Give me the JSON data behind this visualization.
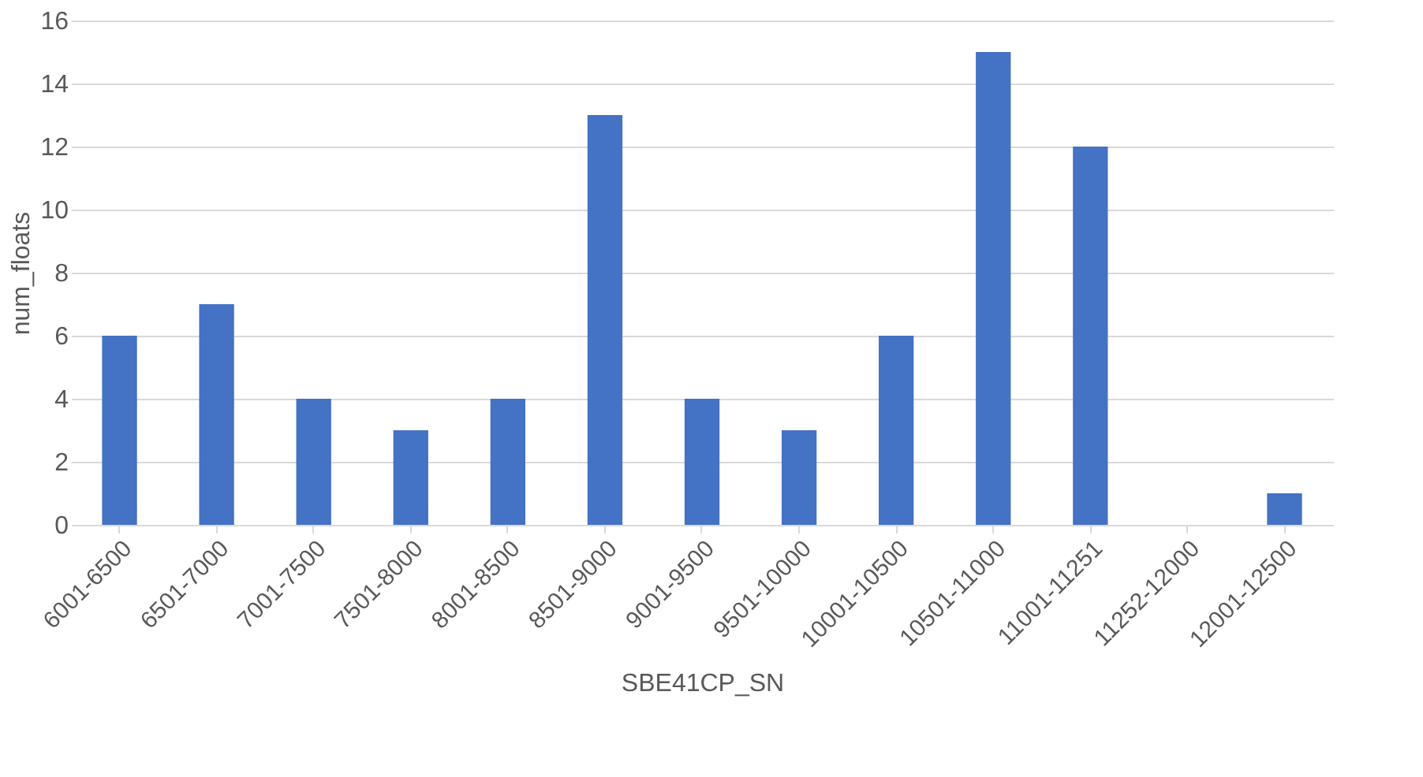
{
  "chart_data": {
    "type": "bar",
    "xlabel": "SBE41CP_SN",
    "ylabel": "num_floats",
    "categories": [
      "6001-6500",
      "6501-7000",
      "7001-7500",
      "7501-8000",
      "8001-8500",
      "8501-9000",
      "9001-9500",
      "9501-10000",
      "10001-10500",
      "10501-11000",
      "11001-11251",
      "11252-12000",
      "12001-12500"
    ],
    "values": [
      6,
      7,
      4,
      3,
      4,
      13,
      4,
      3,
      6,
      15,
      12,
      0,
      1
    ],
    "color": "#4472c4",
    "ylim": [
      0,
      16
    ],
    "yticks": [
      0,
      2,
      4,
      6,
      8,
      10,
      12,
      14,
      16
    ],
    "grid": "y"
  }
}
